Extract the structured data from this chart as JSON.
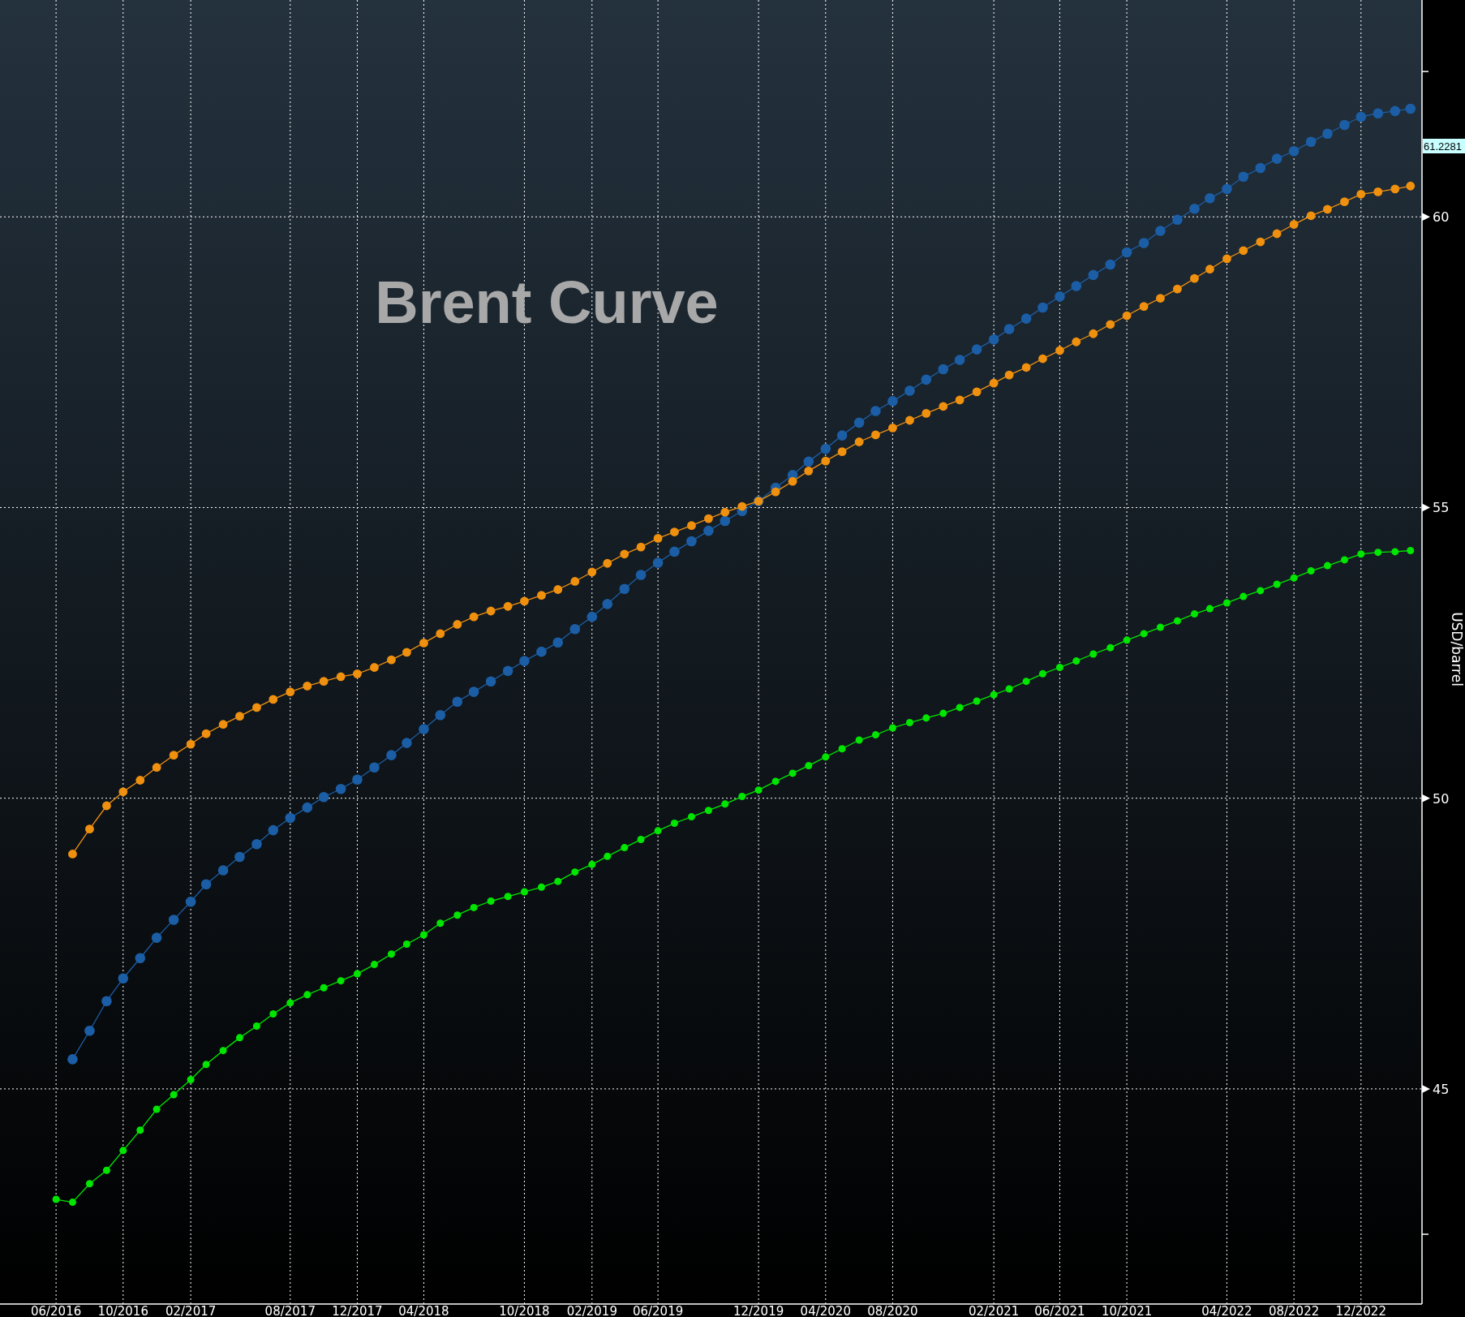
{
  "chart_data": {
    "type": "line",
    "title": "Brent Curve",
    "ylabel": "USD/barrel",
    "x": [
      "2016-06",
      "2016-07",
      "2016-08",
      "2016-09",
      "2016-10",
      "2016-11",
      "2016-12",
      "2017-01",
      "2017-02",
      "2017-03",
      "2017-04",
      "2017-05",
      "2017-06",
      "2017-07",
      "2017-08",
      "2017-09",
      "2017-10",
      "2017-11",
      "2017-12",
      "2018-01",
      "2018-02",
      "2018-03",
      "2018-04",
      "2018-05",
      "2018-06",
      "2018-07",
      "2018-08",
      "2018-09",
      "2018-10",
      "2018-11",
      "2018-12",
      "2019-01",
      "2019-02",
      "2019-03",
      "2019-04",
      "2019-05",
      "2019-06",
      "2019-07",
      "2019-08",
      "2019-09",
      "2019-10",
      "2019-11",
      "2019-12",
      "2020-01",
      "2020-02",
      "2020-03",
      "2020-04",
      "2020-05",
      "2020-06",
      "2020-07",
      "2020-08",
      "2020-09",
      "2020-10",
      "2020-11",
      "2020-12",
      "2021-01",
      "2021-02",
      "2021-03",
      "2021-04",
      "2021-05",
      "2021-06",
      "2021-07",
      "2021-08",
      "2021-09",
      "2021-10",
      "2021-11",
      "2021-12",
      "2022-01",
      "2022-02",
      "2022-03",
      "2022-04",
      "2022-05",
      "2022-06",
      "2022-07",
      "2022-08",
      "2022-09",
      "2022-10",
      "2022-11",
      "2022-12",
      "2023-01",
      "2023-02",
      "2023-03"
    ],
    "series": [
      {
        "color": "#1b5ea6",
        "values": [
          null,
          45.51,
          46.0,
          46.51,
          46.9,
          47.25,
          47.6,
          47.91,
          48.22,
          48.52,
          48.76,
          48.99,
          49.21,
          49.45,
          49.66,
          49.84,
          50.02,
          50.16,
          50.32,
          50.53,
          50.74,
          50.95,
          51.19,
          51.43,
          51.66,
          51.83,
          52.01,
          52.19,
          52.36,
          52.52,
          52.68,
          52.91,
          53.12,
          53.34,
          53.6,
          53.84,
          54.05,
          54.24,
          54.42,
          54.6,
          54.77,
          54.94,
          55.11,
          55.34,
          55.56,
          55.79,
          56.01,
          56.24,
          56.46,
          56.66,
          56.83,
          57.01,
          57.2,
          57.38,
          57.54,
          57.72,
          57.89,
          58.07,
          58.25,
          58.44,
          58.63,
          58.81,
          59.0,
          59.18,
          59.39,
          59.55,
          59.76,
          59.95,
          60.14,
          60.32,
          60.48,
          60.69,
          60.84,
          61.0,
          61.13,
          61.29,
          61.43,
          61.58,
          61.72,
          61.78,
          61.82,
          61.86
        ]
      },
      {
        "color": "#f0900f",
        "values": [
          null,
          49.04,
          49.47,
          49.87,
          50.11,
          50.31,
          50.53,
          50.74,
          50.93,
          51.11,
          51.27,
          51.41,
          51.56,
          51.7,
          51.83,
          51.93,
          52.01,
          52.09,
          52.14,
          52.25,
          52.38,
          52.51,
          52.67,
          52.83,
          52.99,
          53.12,
          53.22,
          53.3,
          53.39,
          53.49,
          53.59,
          53.73,
          53.89,
          54.04,
          54.2,
          54.32,
          54.47,
          54.58,
          54.69,
          54.81,
          54.92,
          55.02,
          55.11,
          55.27,
          55.45,
          55.63,
          55.8,
          55.96,
          56.13,
          56.25,
          56.37,
          56.5,
          56.62,
          56.74,
          56.85,
          56.99,
          57.14,
          57.28,
          57.41,
          57.56,
          57.7,
          57.85,
          57.99,
          58.15,
          58.3,
          58.46,
          58.6,
          58.76,
          58.94,
          59.1,
          59.28,
          59.42,
          59.57,
          59.71,
          59.87,
          60.02,
          60.13,
          60.26,
          60.39,
          60.43,
          60.48,
          60.53
        ]
      },
      {
        "color": "#00e600",
        "values": [
          43.1,
          43.05,
          43.37,
          43.6,
          43.94,
          44.29,
          44.65,
          44.9,
          45.16,
          45.42,
          45.66,
          45.88,
          46.08,
          46.29,
          46.48,
          46.62,
          46.74,
          46.86,
          46.98,
          47.14,
          47.32,
          47.49,
          47.65,
          47.85,
          47.99,
          48.12,
          48.23,
          48.31,
          48.39,
          48.47,
          48.57,
          48.73,
          48.86,
          49.0,
          49.15,
          49.29,
          49.44,
          49.57,
          49.68,
          49.79,
          49.9,
          50.03,
          50.14,
          50.29,
          50.43,
          50.56,
          50.71,
          50.85,
          51.0,
          51.09,
          51.21,
          51.3,
          51.38,
          51.46,
          51.56,
          51.67,
          51.78,
          51.88,
          52.01,
          52.14,
          52.25,
          52.36,
          52.48,
          52.59,
          52.72,
          52.83,
          52.94,
          53.05,
          53.17,
          53.26,
          53.36,
          53.47,
          53.57,
          53.68,
          53.79,
          53.91,
          54.0,
          54.1,
          54.2,
          54.23,
          54.24,
          54.26
        ]
      }
    ],
    "xlim": [
      "2016-02-20",
      "2023-03-22"
    ],
    "xticks": [
      {
        "value": "2016-06",
        "label": "06/2016"
      },
      {
        "value": "2016-10",
        "label": "10/2016"
      },
      {
        "value": "2017-02",
        "label": "02/2017"
      },
      {
        "value": "2017-08",
        "label": "08/2017"
      },
      {
        "value": "2017-12",
        "label": "12/2017"
      },
      {
        "value": "2018-04",
        "label": "04/2018"
      },
      {
        "value": "2018-10",
        "label": "10/2018"
      },
      {
        "value": "2019-02",
        "label": "02/2019"
      },
      {
        "value": "2019-06",
        "label": "06/2019"
      },
      {
        "value": "2019-12",
        "label": "12/2019"
      },
      {
        "value": "2020-04",
        "label": "04/2020"
      },
      {
        "value": "2020-08",
        "label": "08/2020"
      },
      {
        "value": "2021-02",
        "label": "02/2021"
      },
      {
        "value": "2021-06",
        "label": "06/2021"
      },
      {
        "value": "2021-10",
        "label": "10/2021"
      },
      {
        "value": "2022-04",
        "label": "04/2022"
      },
      {
        "value": "2022-08",
        "label": "08/2022"
      },
      {
        "value": "2022-12",
        "label": "12/2022"
      }
    ],
    "ylim": [
      41.3,
      63.73
    ],
    "yticks": [
      {
        "value": 42.5,
        "label": null
      },
      45,
      50,
      55,
      60,
      {
        "value": 62.5,
        "label": null
      }
    ],
    "annotations": [
      "61.2281"
    ],
    "grid": true,
    "marker": "circle",
    "line_style": "solid"
  }
}
